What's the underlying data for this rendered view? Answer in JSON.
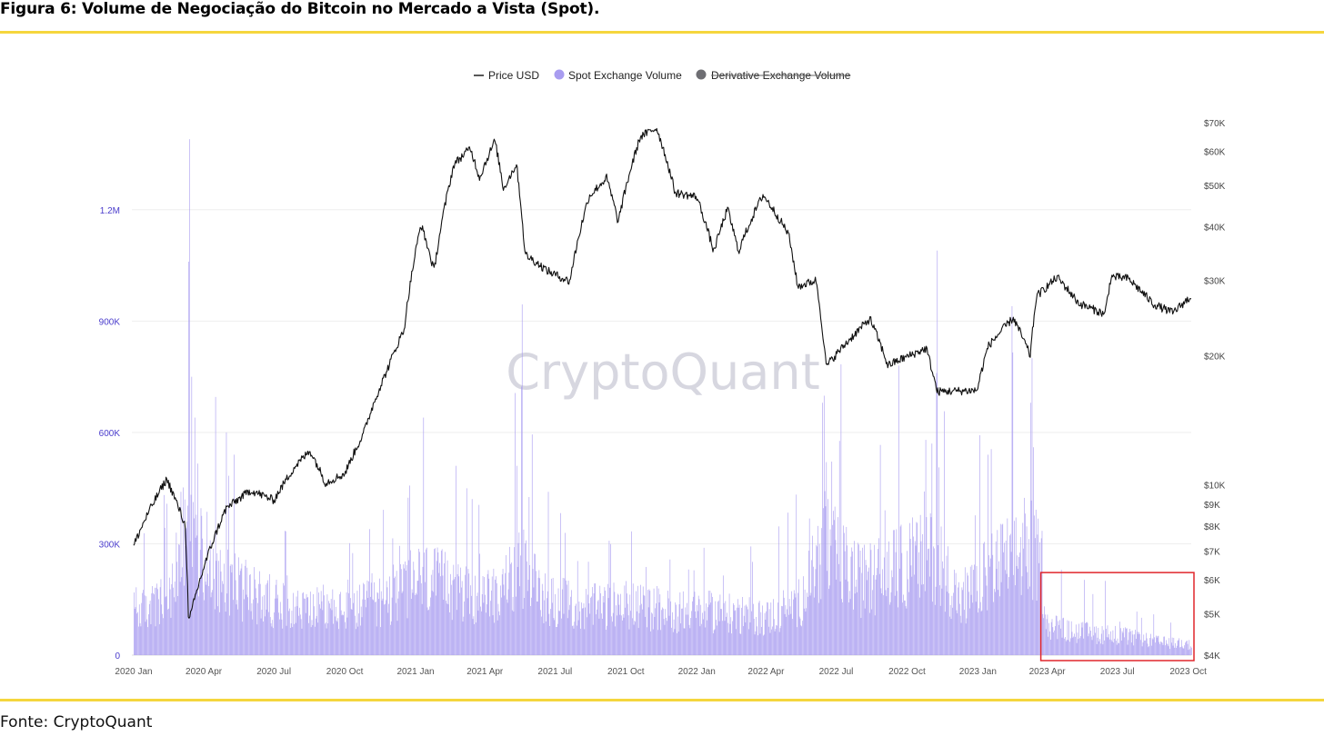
{
  "figure": {
    "title": "Figura 6: Volume de Negociação do Bitcoin no Mercado a Vista (Spot).",
    "source": "Fonte: CryptoQuant",
    "watermark": "CryptoQuant"
  },
  "colors": {
    "accent_rule": "#f5d63d",
    "volume_bars": "#a89cf0",
    "price_line": "#111111",
    "derivative_legend": "#6e6e73",
    "highlight_box": "#e0262b",
    "left_axis_labels": "#4a3ccc"
  },
  "chart_data": {
    "type": "bar+line",
    "legend_position": "top-center",
    "legend": [
      {
        "name": "Price USD",
        "marker": "line",
        "active": true
      },
      {
        "name": "Spot Exchange Volume",
        "marker": "dot",
        "active": true
      },
      {
        "name": "Derivative Exchange Volume",
        "marker": "dot",
        "active": false
      }
    ],
    "x_range": [
      "2020-01-01",
      "2023-10-05"
    ],
    "x_ticks": [
      {
        "date": "2020-01-01",
        "label": "2020 Jan"
      },
      {
        "date": "2020-04-01",
        "label": "2020 Apr"
      },
      {
        "date": "2020-07-01",
        "label": "2020 Jul"
      },
      {
        "date": "2020-10-01",
        "label": "2020 Oct"
      },
      {
        "date": "2021-01-01",
        "label": "2021 Jan"
      },
      {
        "date": "2021-04-01",
        "label": "2021 Apr"
      },
      {
        "date": "2021-07-01",
        "label": "2021 Jul"
      },
      {
        "date": "2021-10-01",
        "label": "2021 Oct"
      },
      {
        "date": "2022-01-01",
        "label": "2022 Jan"
      },
      {
        "date": "2022-04-01",
        "label": "2022 Apr"
      },
      {
        "date": "2022-07-01",
        "label": "2022 Jul"
      },
      {
        "date": "2022-10-01",
        "label": "2022 Oct"
      },
      {
        "date": "2023-01-01",
        "label": "2023 Jan"
      },
      {
        "date": "2023-04-01",
        "label": "2023 Apr"
      },
      {
        "date": "2023-07-01",
        "label": "2023 Jul"
      },
      {
        "date": "2023-10-01",
        "label": "2023 Oct"
      }
    ],
    "y_left": {
      "range": [
        0,
        1400000
      ],
      "ticks": [
        {
          "value": 0,
          "label": "0"
        },
        {
          "value": 300000,
          "label": "300K"
        },
        {
          "value": 600000,
          "label": "600K"
        },
        {
          "value": 900000,
          "label": "900K"
        },
        {
          "value": 1200000,
          "label": "1.2M"
        }
      ]
    },
    "y_right": {
      "scale": "log",
      "range": [
        4000,
        72000
      ],
      "ticks": [
        {
          "value": 4000,
          "label": "$4K"
        },
        {
          "value": 5000,
          "label": "$5K"
        },
        {
          "value": 6000,
          "label": "$6K"
        },
        {
          "value": 7000,
          "label": "$7K"
        },
        {
          "value": 8000,
          "label": "$8K"
        },
        {
          "value": 9000,
          "label": "$9K"
        },
        {
          "value": 10000,
          "label": "$10K"
        },
        {
          "value": 20000,
          "label": "$20K"
        },
        {
          "value": 30000,
          "label": "$30K"
        },
        {
          "value": 40000,
          "label": "$40K"
        },
        {
          "value": 50000,
          "label": "$50K"
        },
        {
          "value": 60000,
          "label": "$60K"
        },
        {
          "value": 70000,
          "label": "$70K"
        }
      ]
    },
    "grid": "horizontal",
    "series": [
      {
        "name": "Spot Exchange Volume",
        "type": "bar",
        "axis": "left",
        "baseline_points": [
          [
            "2020-01-01",
            130000
          ],
          [
            "2020-02-15",
            160000
          ],
          [
            "2020-03-12",
            350000
          ],
          [
            "2020-04-15",
            260000
          ],
          [
            "2020-06-01",
            180000
          ],
          [
            "2020-08-01",
            140000
          ],
          [
            "2020-10-01",
            130000
          ],
          [
            "2020-11-15",
            160000
          ],
          [
            "2021-01-10",
            230000
          ],
          [
            "2021-02-20",
            200000
          ],
          [
            "2021-04-01",
            160000
          ],
          [
            "2021-05-20",
            260000
          ],
          [
            "2021-06-20",
            170000
          ],
          [
            "2021-08-01",
            140000
          ],
          [
            "2021-10-01",
            150000
          ],
          [
            "2021-12-01",
            130000
          ],
          [
            "2022-01-20",
            130000
          ],
          [
            "2022-04-01",
            110000
          ],
          [
            "2022-05-15",
            160000
          ],
          [
            "2022-06-15",
            330000
          ],
          [
            "2022-08-01",
            220000
          ],
          [
            "2022-10-01",
            270000
          ],
          [
            "2022-11-10",
            300000
          ],
          [
            "2022-12-10",
            150000
          ],
          [
            "2023-01-20",
            260000
          ],
          [
            "2023-03-10",
            320000
          ],
          [
            "2023-03-25",
            260000
          ],
          [
            "2023-04-01",
            90000
          ],
          [
            "2023-05-01",
            70000
          ],
          [
            "2023-07-01",
            60000
          ],
          [
            "2023-08-20",
            40000
          ],
          [
            "2023-10-05",
            30000
          ]
        ],
        "spikes": [
          [
            "2020-03-13",
            1390000
          ],
          [
            "2020-03-12",
            1060000
          ],
          [
            "2020-03-16",
            750000
          ],
          [
            "2020-03-20",
            640000
          ],
          [
            "2020-04-30",
            600000
          ],
          [
            "2020-05-10",
            540000
          ],
          [
            "2020-03-02",
            440000
          ],
          [
            "2020-02-25",
            330000
          ],
          [
            "2021-01-11",
            640000
          ],
          [
            "2021-02-22",
            510000
          ],
          [
            "2021-05-19",
            945000
          ],
          [
            "2021-05-12",
            510000
          ],
          [
            "2021-06-22",
            440000
          ],
          [
            "2022-06-13",
            680000
          ],
          [
            "2022-06-18",
            520000
          ],
          [
            "2022-11-09",
            1090000
          ],
          [
            "2022-11-08",
            760000
          ],
          [
            "2022-11-02",
            570000
          ],
          [
            "2022-09-20",
            780000
          ],
          [
            "2022-10-25",
            580000
          ],
          [
            "2023-01-14",
            540000
          ],
          [
            "2023-03-12",
            800000
          ],
          [
            "2023-03-10",
            680000
          ],
          [
            "2023-03-14",
            560000
          ],
          [
            "2023-04-19",
            230000
          ],
          [
            "2023-06-15",
            200000
          ],
          [
            "2023-08-17",
            110000
          ]
        ]
      },
      {
        "name": "Price USD",
        "type": "line",
        "axis": "right",
        "points": [
          [
            "2020-01-01",
            7200
          ],
          [
            "2020-01-20",
            8600
          ],
          [
            "2020-02-13",
            10300
          ],
          [
            "2020-03-08",
            8000
          ],
          [
            "2020-03-12",
            5000
          ],
          [
            "2020-03-13",
            4800
          ],
          [
            "2020-04-01",
            6400
          ],
          [
            "2020-04-30",
            8800
          ],
          [
            "2020-06-01",
            9700
          ],
          [
            "2020-07-01",
            9200
          ],
          [
            "2020-07-28",
            11000
          ],
          [
            "2020-08-17",
            12000
          ],
          [
            "2020-09-06",
            10100
          ],
          [
            "2020-10-01",
            10600
          ],
          [
            "2020-10-25",
            13100
          ],
          [
            "2020-11-25",
            18500
          ],
          [
            "2020-12-17",
            23000
          ],
          [
            "2021-01-08",
            40500
          ],
          [
            "2021-01-25",
            31500
          ],
          [
            "2021-02-20",
            56000
          ],
          [
            "2021-03-13",
            61000
          ],
          [
            "2021-03-25",
            52000
          ],
          [
            "2021-04-14",
            63500
          ],
          [
            "2021-04-25",
            49000
          ],
          [
            "2021-05-12",
            56000
          ],
          [
            "2021-05-23",
            34500
          ],
          [
            "2021-06-22",
            31500
          ],
          [
            "2021-07-20",
            29800
          ],
          [
            "2021-08-14",
            47000
          ],
          [
            "2021-09-06",
            52000
          ],
          [
            "2021-09-21",
            41000
          ],
          [
            "2021-10-20",
            65000
          ],
          [
            "2021-11-10",
            68000
          ],
          [
            "2021-12-04",
            48000
          ],
          [
            "2022-01-01",
            47000
          ],
          [
            "2022-01-23",
            35000
          ],
          [
            "2022-02-10",
            44000
          ],
          [
            "2022-02-24",
            35000
          ],
          [
            "2022-03-28",
            47500
          ],
          [
            "2022-04-30",
            38500
          ],
          [
            "2022-05-12",
            29000
          ],
          [
            "2022-06-05",
            30000
          ],
          [
            "2022-06-18",
            18900
          ],
          [
            "2022-07-10",
            21000
          ],
          [
            "2022-08-14",
            24400
          ],
          [
            "2022-09-06",
            19000
          ],
          [
            "2022-10-26",
            20800
          ],
          [
            "2022-11-09",
            16500
          ],
          [
            "2022-12-31",
            16600
          ],
          [
            "2023-01-14",
            21000
          ],
          [
            "2023-02-16",
            24500
          ],
          [
            "2023-03-10",
            20000
          ],
          [
            "2023-03-18",
            27500
          ],
          [
            "2023-04-14",
            30500
          ],
          [
            "2023-05-12",
            26500
          ],
          [
            "2023-06-15",
            25000
          ],
          [
            "2023-06-23",
            30600
          ],
          [
            "2023-07-15",
            30300
          ],
          [
            "2023-08-17",
            26400
          ],
          [
            "2023-09-11",
            25200
          ],
          [
            "2023-10-05",
            27500
          ]
        ]
      }
    ],
    "annotations": [
      {
        "type": "rectangle",
        "color": "#e0262b",
        "x_from": "2023-04-01",
        "x_to": "2023-10-05",
        "y_from": 0,
        "y_to": 220000,
        "axis": "left"
      }
    ]
  }
}
